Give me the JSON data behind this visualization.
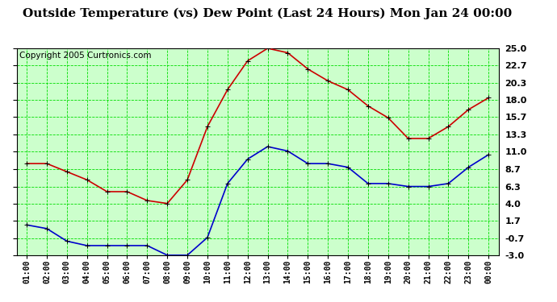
{
  "title": "Outside Temperature (vs) Dew Point (Last 24 Hours) Mon Jan 24 00:00",
  "copyright": "Copyright 2005 Curtronics.com",
  "x_labels": [
    "01:00",
    "02:00",
    "03:00",
    "04:00",
    "05:00",
    "06:00",
    "07:00",
    "08:00",
    "09:00",
    "10:00",
    "11:00",
    "12:00",
    "13:00",
    "14:00",
    "15:00",
    "16:00",
    "17:00",
    "18:00",
    "19:00",
    "20:00",
    "21:00",
    "22:00",
    "23:00",
    "00:00"
  ],
  "temp_data": [
    9.4,
    9.4,
    8.3,
    7.2,
    5.6,
    5.6,
    4.4,
    4.0,
    7.2,
    14.4,
    19.4,
    23.3,
    25.0,
    24.4,
    22.2,
    20.6,
    19.4,
    17.2,
    15.6,
    12.8,
    12.8,
    14.4,
    16.7,
    18.3
  ],
  "dew_data": [
    1.1,
    0.6,
    -1.1,
    -1.7,
    -1.7,
    -1.7,
    -1.7,
    -3.0,
    -3.0,
    -0.6,
    6.7,
    10.0,
    11.7,
    11.1,
    9.4,
    9.4,
    8.9,
    6.7,
    6.7,
    6.3,
    6.3,
    6.7,
    8.9,
    10.6
  ],
  "temp_color": "#cc0000",
  "dew_color": "#0000cc",
  "grid_color": "#00dd00",
  "plot_bg_color": "#ccffcc",
  "outer_bg_color": "#ffffff",
  "y_ticks": [
    25.0,
    22.7,
    20.3,
    18.0,
    15.7,
    13.3,
    11.0,
    8.7,
    6.3,
    4.0,
    1.7,
    -0.7,
    -3.0
  ],
  "ylim": [
    -3.0,
    25.0
  ],
  "title_fontsize": 11,
  "copyright_fontsize": 7.5
}
